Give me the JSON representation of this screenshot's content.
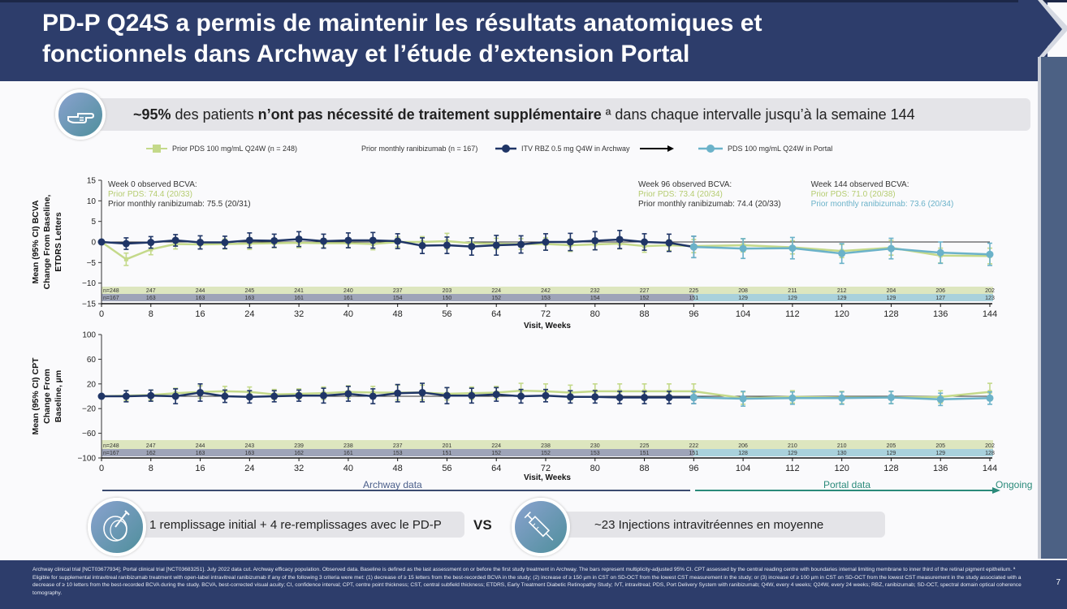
{
  "header": {
    "title_line1": "PD-P Q24S a permis de maintenir les résultats anatomiques et",
    "title_line2": "fonctionnels dans Archway et l’étude d’extension Portal"
  },
  "banner": {
    "icon": "pointing-hand-icon",
    "pct": "~95%",
    "text1": " des patients ",
    "bold": "n’ont pas nécessité de traitement supplémentaire",
    "sup": " ª",
    "text2": " dans chaque intervalle jusqu’à la semaine 144"
  },
  "legend": {
    "items": [
      {
        "label": "Prior PDS 100 mg/mL Q24W (n = 248)",
        "color": "#c4d98a",
        "marker": "square"
      },
      {
        "label": "Prior monthly ranibizumab (n = 167)",
        "color": "#1f3566",
        "marker": "none"
      },
      {
        "label": "ITV RBZ 0.5 mg Q4W in Archway",
        "color": "#1f3566",
        "marker": "circle"
      },
      {
        "label": "PDS 100 mg/mL Q24W in Portal",
        "color": "#6bb2c9",
        "marker": "circle"
      }
    ],
    "arrow_icon": "right-arrow-icon"
  },
  "colors": {
    "pds": "#c4d98a",
    "ranibizumab": "#1f3566",
    "portal": "#6bb2c9",
    "n_row_pds": "#dde6bf",
    "n_row_rbz": "#9ea4b8",
    "n_row_portal": "#a9d1dc",
    "archway_arrow": "#3a4a70",
    "portal_arrow": "#2a8a7a"
  },
  "chart_data": [
    {
      "type": "line",
      "title": "",
      "xlabel": "Visit, Weeks",
      "ylabel": "Mean (95% CI) BCVA Change From Baseline, ETDRS Letters",
      "ylabel_lines": [
        "Mean (95% CI) BCVA",
        "Change From Baseline,",
        "ETDRS Letters"
      ],
      "ylim": [
        -15,
        15
      ],
      "yticks": [
        15,
        10,
        5,
        0,
        -5,
        -10,
        -15
      ],
      "ytick_labels": [
        "15",
        "10",
        "5",
        "0",
        "−5",
        "−10",
        "−15"
      ],
      "xlim": [
        0,
        144
      ],
      "xticks": [
        0,
        8,
        16,
        24,
        32,
        40,
        48,
        56,
        64,
        72,
        80,
        88,
        96,
        104,
        112,
        120,
        128,
        136,
        144
      ],
      "annotations": [
        {
          "x": 0,
          "lines": [
            {
              "text": "Week 0 observed BCVA:",
              "color": "#333333"
            },
            {
              "text": "Prior PDS: 74.4 (20/33)",
              "color": "#b5cc70"
            },
            {
              "text": "Prior monthly ranibizumab: 75.5 (20/31)",
              "color": "#333333"
            }
          ]
        },
        {
          "x": 87,
          "lines": [
            {
              "text": "Week 96 observed BCVA:",
              "color": "#333333"
            },
            {
              "text": "Prior PDS: 73.4 (20/34)",
              "color": "#b5cc70"
            },
            {
              "text": "Prior monthly ranibizumab: 74.4 (20/33)",
              "color": "#333333"
            }
          ]
        },
        {
          "x": 115,
          "lines": [
            {
              "text": "Week 144 observed BCVA:",
              "color": "#333333"
            },
            {
              "text": "Prior PDS: 71.0 (20/38)",
              "color": "#b5cc70"
            },
            {
              "text": "Prior monthly ranibizumab: 73.6 (20/34)",
              "color": "#6bb2c9"
            }
          ]
        }
      ],
      "series": [
        {
          "name": "Prior PDS 100 mg/mL Q24W",
          "color": "#c4d98a",
          "x": [
            0,
            4,
            8,
            12,
            16,
            20,
            24,
            28,
            32,
            36,
            40,
            44,
            48,
            52,
            56,
            60,
            64,
            68,
            72,
            76,
            80,
            84,
            88,
            92,
            96,
            104,
            112,
            120,
            128,
            136,
            144
          ],
          "y": [
            0,
            -4.2,
            -1.8,
            -0.5,
            -0.6,
            -0.5,
            -0.4,
            -0.3,
            -0.2,
            -0.3,
            -0.3,
            -0.5,
            0,
            0,
            0.2,
            -0.3,
            -0.4,
            -0.5,
            -0.5,
            -0.8,
            -0.6,
            -0.4,
            -1.0,
            -0.8,
            -1.0,
            -0.8,
            -1.3,
            -2.2,
            -1.4,
            -3.3,
            -3.4
          ],
          "ci": [
            0.5,
            1.5,
            1.3,
            1.2,
            1.1,
            1.2,
            1.4,
            1.1,
            1.2,
            1.1,
            1.1,
            1.4,
            1.2,
            1.3,
            1.9,
            1.3,
            1.3,
            1.3,
            1.5,
            1.5,
            1.3,
            1.3,
            1.5,
            1.3,
            1.6,
            1.6,
            1.6,
            1.6,
            1.8,
            1.8,
            1.9
          ]
        },
        {
          "name": "Prior monthly ranibizumab (ITV RBZ 0.5 mg Q4W in Archway)",
          "color": "#1f3566",
          "x": [
            0,
            4,
            8,
            12,
            16,
            20,
            24,
            28,
            32,
            36,
            40,
            44,
            48,
            52,
            56,
            60,
            64,
            68,
            72,
            76,
            80,
            84,
            88,
            92,
            96
          ],
          "y": [
            0,
            -0.4,
            -0.1,
            0.4,
            -0.1,
            -0.1,
            0.4,
            0.3,
            0.7,
            0.2,
            0.4,
            0.4,
            0.2,
            -0.9,
            -0.8,
            -1.1,
            -0.8,
            -0.6,
            0,
            0,
            0.3,
            0.6,
            0,
            -0.2,
            -1.2
          ],
          "ci": [
            0.3,
            1.4,
            1.4,
            1.4,
            1.6,
            1.5,
            1.8,
            1.6,
            1.8,
            1.7,
            1.8,
            1.9,
            1.8,
            1.9,
            2.0,
            2.1,
            2.4,
            2.1,
            2.0,
            2.1,
            2.2,
            2.2,
            2.0,
            2.1,
            2.6
          ]
        },
        {
          "name": "PDS 100 mg/mL Q24W in Portal",
          "color": "#6bb2c9",
          "x": [
            96,
            104,
            112,
            120,
            128,
            136,
            144
          ],
          "y": [
            -1.2,
            -1.6,
            -1.5,
            -2.8,
            -1.6,
            -2.6,
            -3.0
          ],
          "ci": [
            2.6,
            2.4,
            2.6,
            2.4,
            2.5,
            2.6,
            2.7
          ]
        }
      ],
      "n_rows": {
        "pds_label": "n=248",
        "rbz_label": "n=167",
        "x": [
          0,
          8,
          16,
          24,
          32,
          40,
          48,
          56,
          64,
          72,
          80,
          88,
          96,
          104,
          112,
          120,
          128,
          136,
          144
        ],
        "pds": [
          "n=248",
          "247",
          "244",
          "245",
          "241",
          "240",
          "237",
          "203",
          "224",
          "242",
          "232",
          "227",
          "225",
          "208",
          "211",
          "212",
          "204",
          "206",
          "202"
        ],
        "rbz": [
          "n=167",
          "163",
          "163",
          "163",
          "161",
          "161",
          "154",
          "150",
          "152",
          "153",
          "154",
          "152",
          "151",
          "129",
          "129",
          "129",
          "129",
          "127",
          "123"
        ]
      }
    },
    {
      "type": "line",
      "title": "",
      "xlabel": "Visit, Weeks",
      "ylabel": "Mean (95% CI) CPT Change From Baseline, µm",
      "ylabel_lines": [
        "Mean (95% CI) CPT",
        "Change From",
        "Baseline, µm"
      ],
      "ylim": [
        -100,
        100
      ],
      "yticks": [
        100,
        60,
        20,
        -20,
        -60,
        -100
      ],
      "ytick_labels": [
        "100",
        "60",
        "20",
        "−20",
        "−60",
        "−100"
      ],
      "xlim": [
        0,
        144
      ],
      "xticks": [
        0,
        8,
        16,
        24,
        32,
        40,
        48,
        56,
        64,
        72,
        80,
        88,
        96,
        104,
        112,
        120,
        128,
        136,
        144
      ],
      "series": [
        {
          "name": "Prior PDS 100 mg/mL Q24W",
          "color": "#c4d98a",
          "x": [
            0,
            4,
            8,
            12,
            16,
            20,
            24,
            28,
            32,
            36,
            40,
            44,
            48,
            52,
            56,
            60,
            64,
            68,
            72,
            76,
            80,
            84,
            88,
            92,
            96,
            104,
            112,
            120,
            128,
            136,
            144
          ],
          "y": [
            0,
            1,
            2,
            5,
            7,
            8,
            7,
            3,
            4,
            5,
            7,
            6,
            6,
            6,
            4,
            5,
            6,
            9,
            8,
            6,
            8,
            8,
            8,
            8,
            8,
            -3,
            -1,
            -2,
            -2,
            -1,
            7
          ],
          "ci": [
            2,
            8,
            8,
            8,
            10,
            8,
            8,
            8,
            8,
            10,
            10,
            10,
            12,
            12,
            10,
            10,
            10,
            12,
            12,
            12,
            12,
            12,
            12,
            12,
            12,
            10,
            10,
            10,
            10,
            10,
            14
          ]
        },
        {
          "name": "Prior monthly ranibizumab (ITV RBZ 0.5 mg Q4W in Archway)",
          "color": "#1f3566",
          "x": [
            0,
            4,
            8,
            12,
            16,
            20,
            24,
            28,
            32,
            36,
            40,
            44,
            48,
            52,
            56,
            60,
            64,
            68,
            72,
            76,
            80,
            84,
            88,
            92,
            96
          ],
          "y": [
            0,
            0,
            1,
            0,
            6,
            0,
            -1,
            0,
            1,
            1,
            4,
            0,
            5,
            6,
            1,
            1,
            3,
            0,
            1,
            -1,
            -1,
            -2,
            -2,
            -2,
            -2
          ],
          "ci": [
            2,
            9,
            9,
            12,
            14,
            10,
            10,
            9,
            9,
            12,
            12,
            12,
            14,
            15,
            13,
            12,
            11,
            11,
            10,
            10,
            10,
            10,
            10,
            10,
            10
          ]
        },
        {
          "name": "PDS 100 mg/mL Q24W in Portal",
          "color": "#6bb2c9",
          "x": [
            96,
            104,
            112,
            120,
            128,
            136,
            144
          ],
          "y": [
            -2,
            -4,
            -3,
            -3,
            -2,
            -5,
            -3
          ],
          "ci": [
            10,
            12,
            10,
            10,
            10,
            10,
            10
          ]
        }
      ],
      "n_rows": {
        "x": [
          0,
          8,
          16,
          24,
          32,
          40,
          48,
          56,
          64,
          72,
          80,
          88,
          96,
          104,
          112,
          120,
          128,
          136,
          144
        ],
        "pds": [
          "n=248",
          "247",
          "244",
          "243",
          "239",
          "238",
          "237",
          "201",
          "224",
          "238",
          "230",
          "225",
          "222",
          "206",
          "210",
          "210",
          "205",
          "205",
          "202"
        ],
        "rbz": [
          "n=167",
          "162",
          "163",
          "163",
          "162",
          "161",
          "153",
          "151",
          "152",
          "152",
          "153",
          "151",
          "151",
          "128",
          "129",
          "130",
          "129",
          "129",
          "128"
        ]
      }
    }
  ],
  "phase_labels": {
    "archway": "Archway data",
    "portal": "Portal data",
    "ongoing": "Ongoing"
  },
  "bottom": {
    "left_icon": "implant-device-icon",
    "left_text": "1 remplissage initial + 4 re-remplissages avec le PD-P",
    "vs": "VS",
    "right_icon": "syringe-icon",
    "right_text": "~23 Injections intravitréennes en moyenne"
  },
  "footer": {
    "text": "Archway clinical trial [NCT03677934]; Portal clinical trial [NCT03683251]. July 2022 data cut. Archway efficacy population. Observed data. Baseline is defined as the last assessment on or before the first study treatment in Archway. The bars represent multiplicity-adjusted 95% CI. CPT assessed by the central reading centre with boundaries internal limiting membrane to inner third of the retinal pigment epithelium. ª Eligible for supplemental intravitreal ranibizumab treatment with open-label intravitreal ranibizumab if any of the following 3 criteria were met: (1) decrease of ≥ 15 letters from the best-recorded BCVA in the study; (2) increase of ≥ 150 µm in CST on SD-OCT from the lowest CST measurement in the study; or (3) increase of ≥ 100 µm in CST on SD-OCT from the lowest CST measurement in the study associated with a decrease of ≥ 10 letters from the best-recorded BCVA during the study. BCVA, best-corrected visual acuity; CI, confidence interval; CPT, centre point thickness; CST, central subfield thickness; ETDRS, Early Treatment Diabetic Retinopathy Study; IVT, intravitreal; PDS, Port Delivery System with ranibizumab; Q4W, every 4 weeks; Q24W, every 24 weeks; RBZ, ranibizumab; SD-OCT, spectral domain optical coherence tomography.",
    "page": "7"
  }
}
